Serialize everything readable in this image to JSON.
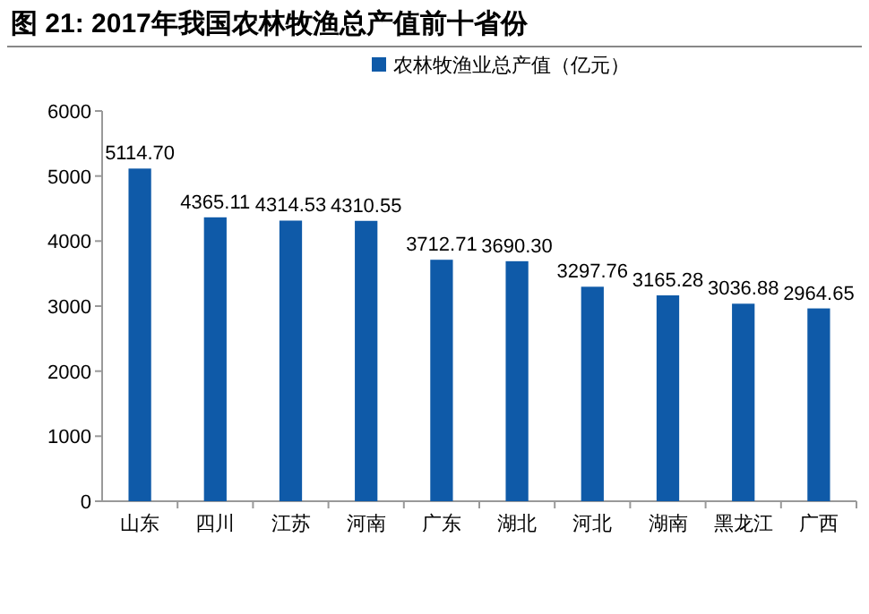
{
  "chart_data": {
    "type": "bar",
    "title": "图 21: 2017年我国农林牧渔总产值前十省份",
    "categories": [
      "山东",
      "四川",
      "江苏",
      "河南",
      "广东",
      "湖北",
      "河北",
      "湖南",
      "黑龙江",
      "广西"
    ],
    "series": [
      {
        "name": "农林牧渔业总产值（亿元）",
        "color": "#0f5aa8",
        "values": [
          5114.7,
          4365.11,
          4314.53,
          4310.55,
          3712.71,
          3690.3,
          3297.76,
          3165.28,
          3036.88,
          2964.65
        ],
        "value_labels": [
          "5114.70",
          "4365.11",
          "4314.53",
          "4310.55",
          "3712.71",
          "3690.30",
          "3297.76",
          "3165.28",
          "3036.88",
          "2964.65"
        ]
      }
    ],
    "ylim": [
      0,
      6000
    ],
    "yticks": [
      0,
      1000,
      2000,
      3000,
      4000,
      5000,
      6000
    ],
    "grid": false,
    "legend": "top"
  }
}
